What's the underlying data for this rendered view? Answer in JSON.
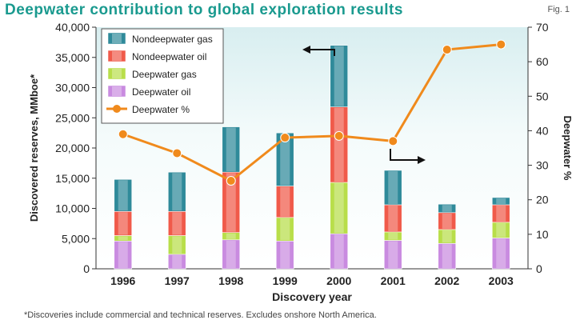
{
  "header": {
    "title": "Deepwater contribution to global exploration results",
    "fig_label": "Fig. 1"
  },
  "footnote": "*Discoveries include commercial and technical reserves. Excludes onshore North America.",
  "colors": {
    "nondeepwater_gas": "#2f8a9a",
    "nondeepwater_oil": "#f05a4a",
    "deepwater_gas": "#b8de4a",
    "deepwater_oil": "#c98be0",
    "deepwater_pct": "#f08a1c",
    "title": "#1a9a8f"
  },
  "chart_data": {
    "type": "bar",
    "stacked": true,
    "categories": [
      "1996",
      "1997",
      "1998",
      "1999",
      "2000",
      "2001",
      "2002",
      "2003"
    ],
    "series": [
      {
        "name": "Deepwater oil",
        "values": [
          4600,
          2400,
          4800,
          4600,
          5800,
          4700,
          4200,
          5100
        ]
      },
      {
        "name": "Deepwater gas",
        "values": [
          900,
          3100,
          1200,
          3900,
          8500,
          1400,
          2300,
          2600
        ]
      },
      {
        "name": "Nondeepwater oil",
        "values": [
          4000,
          4000,
          10000,
          5200,
          12500,
          4500,
          2800,
          2900
        ]
      },
      {
        "name": "Nondeepwater gas",
        "values": [
          5300,
          6500,
          7500,
          8800,
          10200,
          5700,
          1400,
          1200
        ]
      }
    ],
    "line_series": {
      "name": "Deepwater %",
      "axis": "right",
      "values": [
        39,
        33.5,
        25.5,
        38,
        38.5,
        37,
        63.5,
        65
      ]
    },
    "xlabel": "Discovery year",
    "ylabel": "Discovered reserves, MMboe*",
    "y2label": "Deepwater %",
    "ylim": [
      0,
      40000
    ],
    "y2lim": [
      0,
      70
    ],
    "yticks": [
      "0",
      "5,000",
      "10,000",
      "15,000",
      "20,000",
      "25,000",
      "30,000",
      "35,000",
      "40,000"
    ],
    "y2ticks": [
      "0",
      "10",
      "20",
      "30",
      "40",
      "50",
      "60",
      "70"
    ],
    "legend": [
      "Nondeepwater gas",
      "Nondeepwater oil",
      "Deepwater gas",
      "Deepwater oil",
      "Deepwater %"
    ],
    "legend_position": "top-left"
  }
}
